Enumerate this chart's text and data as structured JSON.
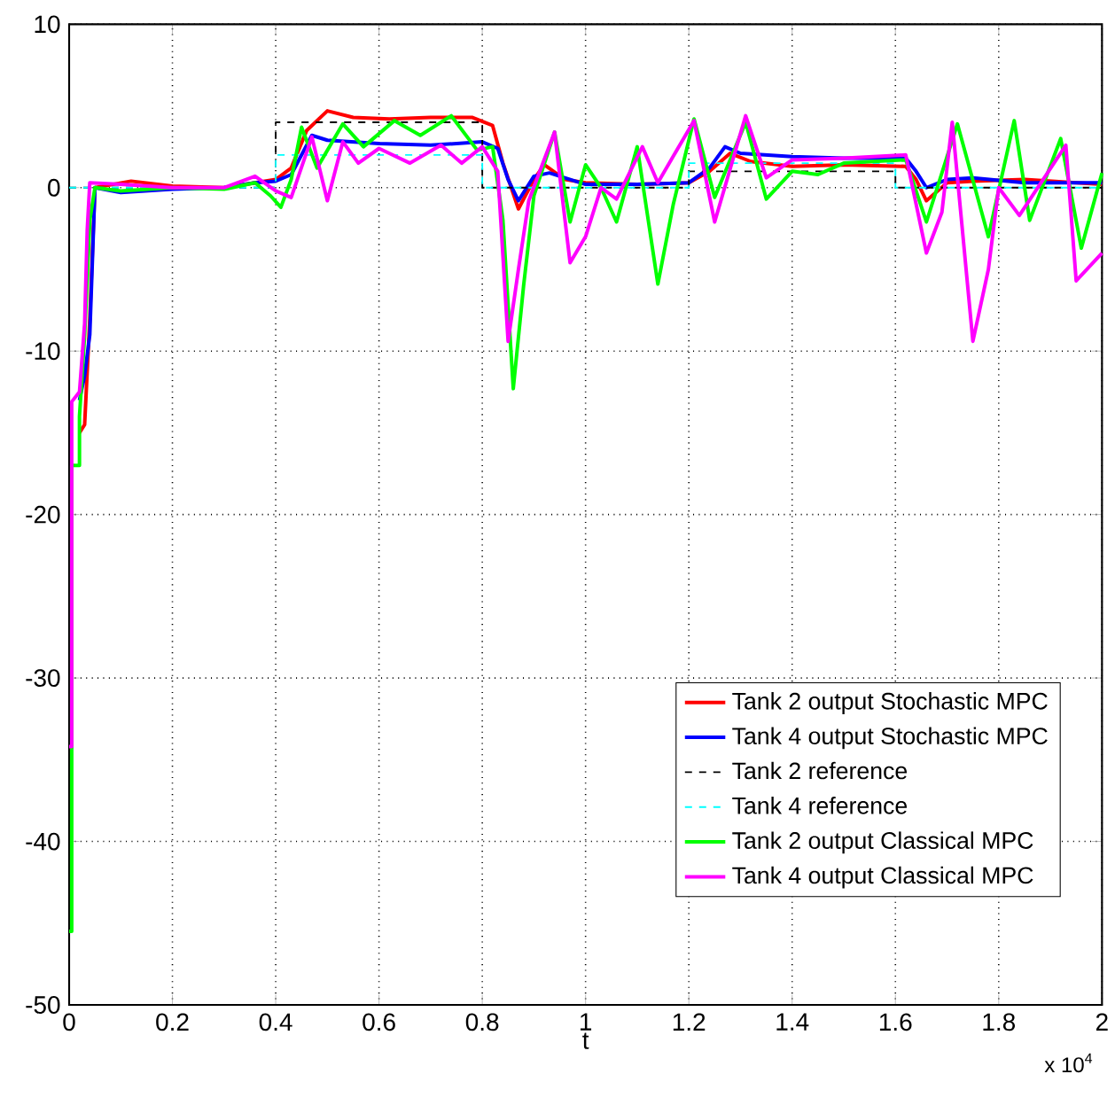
{
  "chart_data": {
    "type": "line",
    "xlabel": "t",
    "annotations": [
      "x 10$^{4}$"
    ],
    "xlim": [
      0,
      2
    ],
    "ylim": [
      -50,
      10
    ],
    "xticks": [
      0,
      0.2,
      0.4,
      0.6,
      0.8,
      1,
      1.2,
      1.4,
      1.6,
      1.8,
      2
    ],
    "yticks": [
      -50,
      -40,
      -30,
      -20,
      -10,
      0,
      10
    ],
    "grid": true,
    "legend": "bottom right",
    "series": [
      {
        "name": "Tank 2 output Stochastic MPC",
        "color": "#ff0000",
        "line_style": "solid",
        "x": [
          0.02,
          0.03,
          0.04,
          0.05,
          0.12,
          0.2,
          0.3,
          0.36,
          0.4,
          0.43,
          0.46,
          0.5,
          0.55,
          0.62,
          0.7,
          0.78,
          0.82,
          0.84,
          0.87,
          0.9,
          0.92,
          0.96,
          1.0,
          1.1,
          1.2,
          1.24,
          1.28,
          1.32,
          1.4,
          1.5,
          1.62,
          1.64,
          1.66,
          1.7,
          1.75,
          1.85,
          1.95,
          2.0
        ],
        "values": [
          -15,
          -14.5,
          -8,
          0,
          0.4,
          0.1,
          0,
          0.3,
          0.5,
          1.2,
          3.5,
          4.7,
          4.3,
          4.2,
          4.3,
          4.3,
          3.8,
          1.5,
          -1.3,
          0.5,
          1.4,
          0.5,
          0.3,
          0.2,
          0.3,
          1.0,
          2.1,
          1.6,
          1.3,
          1.4,
          1.3,
          0.5,
          -0.8,
          0.3,
          0.4,
          0.5,
          0.3,
          0.2
        ]
      },
      {
        "name": "Tank 4 output Stochastic MPC",
        "color": "#0000ff",
        "line_style": "solid",
        "x": [
          0.02,
          0.03,
          0.04,
          0.05,
          0.1,
          0.2,
          0.3,
          0.36,
          0.4,
          0.43,
          0.47,
          0.5,
          0.6,
          0.7,
          0.8,
          0.83,
          0.85,
          0.87,
          0.9,
          0.93,
          1.0,
          1.1,
          1.2,
          1.24,
          1.27,
          1.3,
          1.4,
          1.5,
          1.62,
          1.64,
          1.66,
          1.7,
          1.75,
          1.85,
          2.0
        ],
        "values": [
          -13,
          -11.5,
          -9,
          0,
          -0.3,
          -0.1,
          0,
          0.3,
          0.4,
          0.8,
          3.2,
          2.9,
          2.7,
          2.6,
          2.8,
          2.4,
          0.5,
          -0.8,
          0.7,
          0.9,
          0.2,
          0.2,
          0.3,
          1.2,
          2.5,
          2.1,
          1.9,
          1.8,
          1.8,
          1.0,
          0.0,
          0.5,
          0.6,
          0.3,
          0.3
        ]
      },
      {
        "name": "Tank 2 reference",
        "color": "#000000",
        "line_style": "dashed",
        "x": [
          0,
          0.4,
          0.4,
          0.8,
          0.8,
          1.2,
          1.2,
          1.6,
          1.6,
          2.0
        ],
        "values": [
          0,
          0,
          4,
          4,
          0,
          0,
          1,
          1,
          0,
          0
        ]
      },
      {
        "name": "Tank 4 reference",
        "color": "#00ffff",
        "line_style": "dashed",
        "x": [
          0,
          0.4,
          0.4,
          0.8,
          0.8,
          1.2,
          1.2,
          1.6,
          1.6,
          2.0
        ],
        "values": [
          0,
          0,
          2,
          2,
          0,
          0,
          1.5,
          1.5,
          0,
          0
        ]
      },
      {
        "name": "Tank 2 output Classical MPC",
        "color": "#00ff00",
        "line_style": "solid",
        "x": [
          0,
          0.005,
          0.005,
          0.02,
          0.02,
          0.03,
          0.04,
          0.05,
          0.1,
          0.2,
          0.3,
          0.36,
          0.39,
          0.41,
          0.43,
          0.45,
          0.48,
          0.53,
          0.57,
          0.63,
          0.68,
          0.74,
          0.79,
          0.82,
          0.84,
          0.86,
          0.88,
          0.9,
          0.94,
          0.97,
          1.0,
          1.03,
          1.06,
          1.1,
          1.14,
          1.17,
          1.21,
          1.25,
          1.31,
          1.35,
          1.4,
          1.45,
          1.5,
          1.62,
          1.66,
          1.72,
          1.78,
          1.83,
          1.86,
          1.92,
          1.96,
          2.0
        ],
        "values": [
          -45.5,
          -45.5,
          -17,
          -17,
          -14,
          -9,
          -2,
          0,
          -0.2,
          0,
          -0.1,
          0.3,
          -0.5,
          -1.2,
          0.5,
          3.7,
          1.2,
          3.9,
          2.5,
          4.1,
          3.2,
          4.4,
          2.3,
          2.5,
          -2,
          -12.3,
          -6,
          -0.5,
          3.4,
          -2.1,
          1.4,
          0,
          -2.1,
          2.5,
          -5.9,
          -1,
          4.2,
          -0.6,
          4.0,
          -0.7,
          1.0,
          0.8,
          1.5,
          1.7,
          -2.1,
          3.9,
          -3,
          4.1,
          -2,
          3.0,
          -3.7,
          0.9
        ]
      },
      {
        "name": "Tank 4 output Classical MPC",
        "color": "#ff00ff",
        "line_style": "solid",
        "x": [
          0,
          0.005,
          0.005,
          0.02,
          0.03,
          0.035,
          0.04,
          0.1,
          0.2,
          0.3,
          0.36,
          0.4,
          0.43,
          0.47,
          0.5,
          0.53,
          0.56,
          0.6,
          0.66,
          0.72,
          0.76,
          0.8,
          0.83,
          0.85,
          0.87,
          0.89,
          0.94,
          0.97,
          1.0,
          1.03,
          1.06,
          1.11,
          1.14,
          1.21,
          1.25,
          1.31,
          1.35,
          1.4,
          1.5,
          1.62,
          1.66,
          1.69,
          1.71,
          1.75,
          1.78,
          1.8,
          1.84,
          1.93,
          1.95,
          2.0
        ],
        "values": [
          -34.2,
          -34.2,
          -13.1,
          -12.5,
          -8.3,
          -2.6,
          0.3,
          0.2,
          0,
          0,
          0.7,
          -0.2,
          -0.6,
          3.1,
          -0.8,
          2.8,
          1.5,
          2.4,
          1.5,
          2.6,
          1.5,
          2.5,
          1.0,
          -9.4,
          -5,
          -0.8,
          3.4,
          -4.6,
          -3,
          0,
          -0.7,
          2.5,
          0.3,
          4.1,
          -2.1,
          4.4,
          0.6,
          1.7,
          1.8,
          2.0,
          -4.0,
          -1.5,
          4.0,
          -9.4,
          -5,
          0,
          -1.7,
          2.6,
          -5.7,
          -4
        ]
      }
    ]
  }
}
